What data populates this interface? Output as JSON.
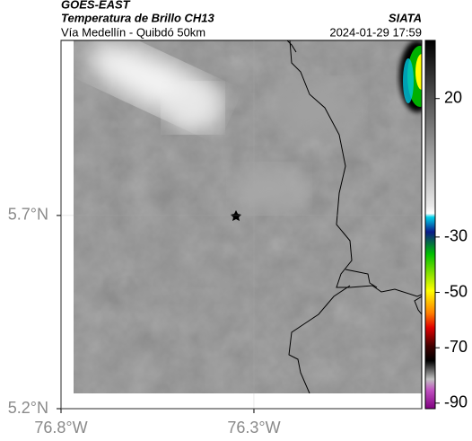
{
  "header": {
    "title": "GOES-EAST",
    "subtitle": "Temperatura de Brillo CH13",
    "location": "Vía Medellín - Quibdó 50km",
    "source": "SIATA",
    "timestamp": "2024-01-29 17:59"
  },
  "map": {
    "xlim": [
      -76.8,
      -75.865
    ],
    "ylim": [
      5.2,
      6.153
    ],
    "xticks": [
      {
        "value": -76.8,
        "label": "76.8°W"
      },
      {
        "value": -76.3,
        "label": "76.3°W"
      }
    ],
    "yticks": [
      {
        "value": 5.7,
        "label": "5.7°N"
      },
      {
        "value": 5.2,
        "label": "5.2°N"
      }
    ]
  },
  "colorbar": {
    "lim": [
      -92,
      41
    ],
    "ticks": [
      20,
      -30,
      -50,
      -70,
      -90
    ]
  }
}
